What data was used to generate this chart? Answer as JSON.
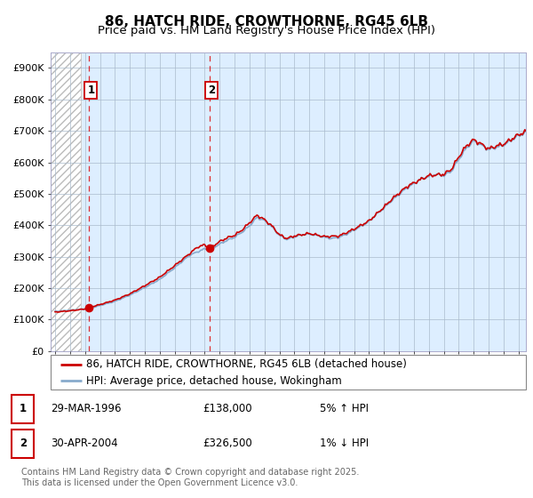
{
  "title": "86, HATCH RIDE, CROWTHORNE, RG45 6LB",
  "subtitle": "Price paid vs. HM Land Registry's House Price Index (HPI)",
  "ylim": [
    0,
    950000
  ],
  "yticks": [
    0,
    100000,
    200000,
    300000,
    400000,
    500000,
    600000,
    700000,
    800000,
    900000
  ],
  "ytick_labels": [
    "£0",
    "£100K",
    "£200K",
    "£300K",
    "£400K",
    "£500K",
    "£600K",
    "£700K",
    "£800K",
    "£900K"
  ],
  "xlim_start": 1993.7,
  "xlim_end": 2025.5,
  "background_color": "#ffffff",
  "plot_bg_color": "#ddeeff",
  "grid_color": "#aabbcc",
  "red_line_color": "#cc0000",
  "blue_line_color": "#88aacc",
  "point1_x": 1996.24,
  "point1_y": 138000,
  "point2_x": 2004.33,
  "point2_y": 326500,
  "vline1_x": 1996.24,
  "vline2_x": 2004.33,
  "legend_label_red": "86, HATCH RIDE, CROWTHORNE, RG45 6LB (detached house)",
  "legend_label_blue": "HPI: Average price, detached house, Wokingham",
  "table_row1": [
    "1",
    "29-MAR-1996",
    "£138,000",
    "5% ↑ HPI"
  ],
  "table_row2": [
    "2",
    "30-APR-2004",
    "£326,500",
    "1% ↓ HPI"
  ],
  "footer": "Contains HM Land Registry data © Crown copyright and database right 2025.\nThis data is licensed under the Open Government Licence v3.0.",
  "title_fontsize": 11,
  "subtitle_fontsize": 9.5,
  "tick_fontsize": 8,
  "legend_fontsize": 8.5,
  "table_fontsize": 8.5,
  "footer_fontsize": 7,
  "hatch_end_year": 1995.7
}
